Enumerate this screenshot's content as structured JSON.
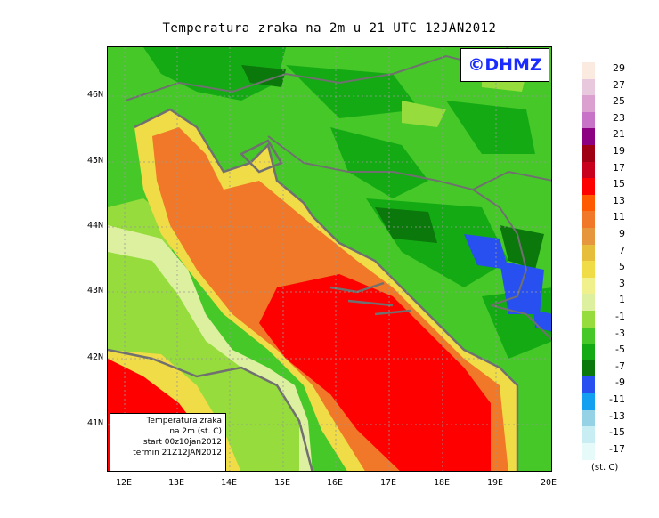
{
  "title": "Temperatura zraka na 2m u 21 UTC 12JAN2012",
  "logo": "©DHMZ",
  "info_box": [
    "Temperatura zraka",
    "na 2m (st. C)",
    "start 00z10jan2012",
    "termin 21Z12JAN2012"
  ],
  "lat_labels": [
    "46N",
    "45N",
    "44N",
    "43N",
    "42N",
    "41N"
  ],
  "lon_labels": [
    "12E",
    "13E",
    "14E",
    "15E",
    "16E",
    "17E",
    "18E",
    "19E",
    "20E"
  ],
  "legend_labels": [
    "29",
    "27",
    "25",
    "23",
    "21",
    "19",
    "17",
    "15",
    "13",
    "11",
    "9",
    "7",
    "5",
    "3",
    "1",
    "-1",
    "-3",
    "-5",
    "-7",
    "-9",
    "-11",
    "-13",
    "-15",
    "-17"
  ],
  "legend_unit": "(st. C)",
  "colors": {
    "legend": [
      "#fbeadf",
      "#e8c8dc",
      "#dca0d0",
      "#c872c8",
      "#8c0082",
      "#a00014",
      "#c8001e",
      "#ff0000",
      "#ff5a00",
      "#f07828",
      "#e6963c",
      "#e6be3c",
      "#f0dc46",
      "#f0f08c",
      "#dcf0a0",
      "#96dc3c",
      "#46c828",
      "#14aa14",
      "#0a780a",
      "#2850f0",
      "#14a0f0",
      "#96d2e6",
      "#c8eef4",
      "#e6fafa"
    ],
    "sea_warm": "#ff0000",
    "sea_mid": "#f07828",
    "coast_line": "#707070",
    "land_green": "#46c828",
    "land_dark": "#14aa14",
    "land_light": "#96dc3c",
    "cold_blue": "#2850f0"
  }
}
